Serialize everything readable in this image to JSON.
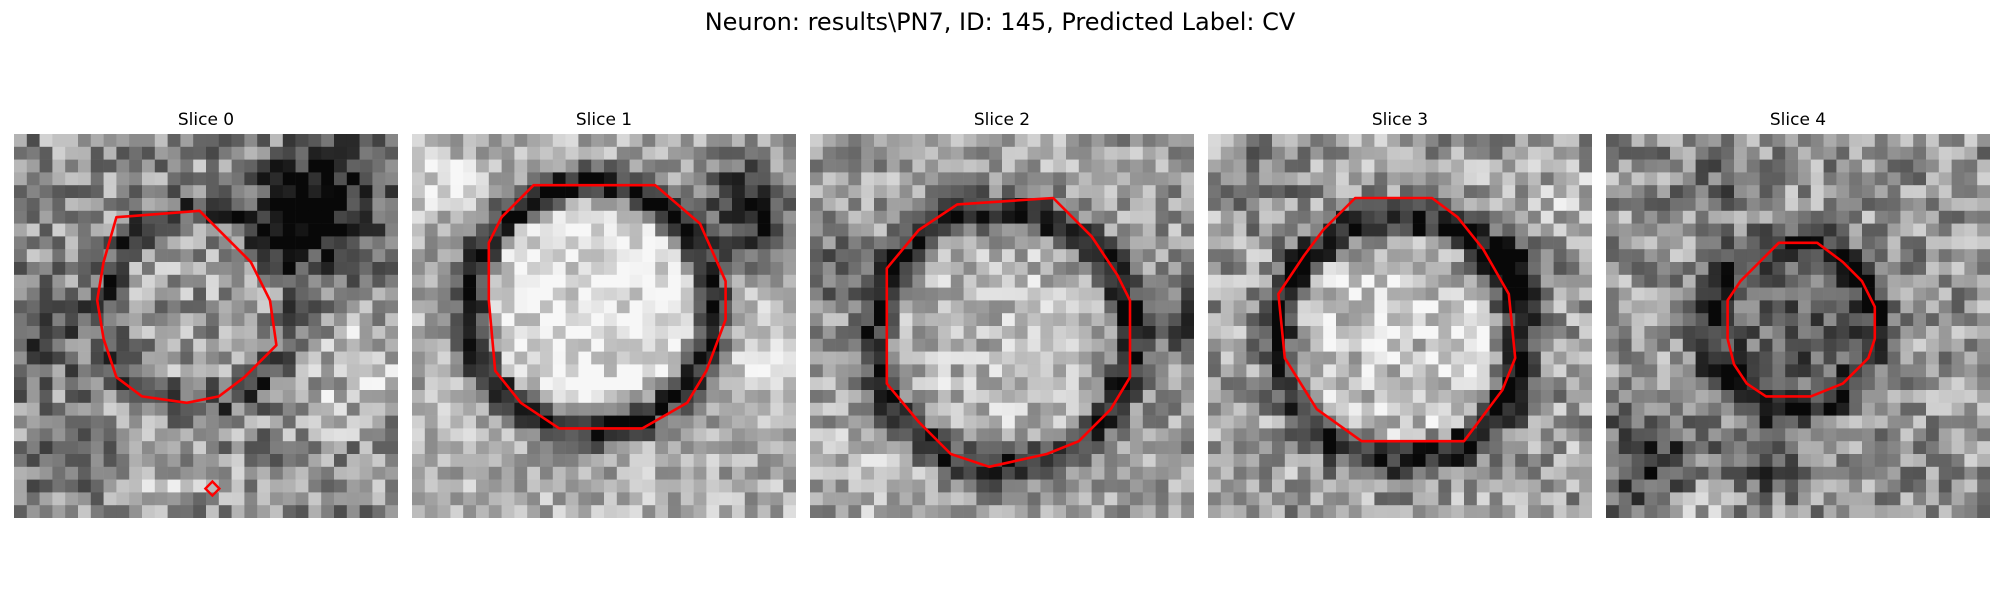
{
  "figure": {
    "title": "Neuron: results\\PN7, ID: 145, Predicted Label: CV"
  },
  "panels": [
    {
      "title": "Slice 0"
    },
    {
      "title": "Slice 1"
    },
    {
      "title": "Slice 2"
    },
    {
      "title": "Slice 3"
    },
    {
      "title": "Slice 4"
    }
  ],
  "colors": {
    "contour": "#ff0000",
    "background": "#ffffff"
  }
}
